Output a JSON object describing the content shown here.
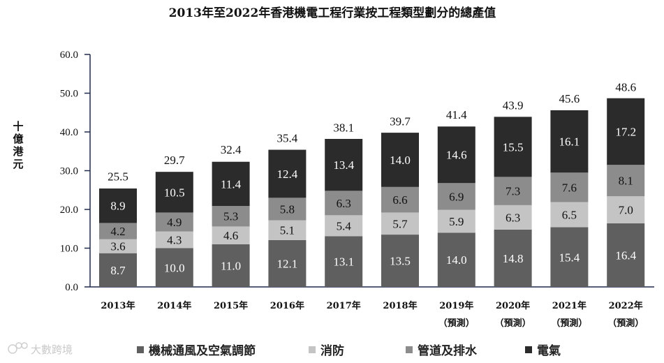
{
  "chart_data": {
    "type": "bar",
    "stacked": true,
    "title": "2013年至2022年香港機電工程行業按工程類型劃分的總產值",
    "ylabel": "十億港元",
    "xlabel": "",
    "ylim": [
      0,
      60
    ],
    "yticks": [
      "0.0",
      "10.0",
      "20.0",
      "30.0",
      "40.0",
      "50.0",
      "60.0"
    ],
    "categories": [
      {
        "year": "2013年",
        "note": ""
      },
      {
        "year": "2014年",
        "note": ""
      },
      {
        "year": "2015年",
        "note": ""
      },
      {
        "year": "2016年",
        "note": ""
      },
      {
        "year": "2017年",
        "note": ""
      },
      {
        "year": "2018年",
        "note": ""
      },
      {
        "year": "2019年",
        "note": "（預測）"
      },
      {
        "year": "2020年",
        "note": "（預測）"
      },
      {
        "year": "2021年",
        "note": "（預測）"
      },
      {
        "year": "2022年",
        "note": "（預測）"
      }
    ],
    "series": [
      {
        "name": "機械通風及空氣調節",
        "color": "#5f5f5f",
        "label_color": "#ffffff",
        "values": [
          "8.7",
          "10.0",
          "11.0",
          "12.1",
          "13.1",
          "13.5",
          "14.0",
          "14.8",
          "15.4",
          "16.4"
        ]
      },
      {
        "name": "消防",
        "color": "#c4c4c4",
        "label_color": "#111111",
        "values": [
          "3.6",
          "4.3",
          "4.6",
          "5.1",
          "5.4",
          "5.7",
          "5.9",
          "6.3",
          "6.5",
          "7.0"
        ]
      },
      {
        "name": "管道及排水",
        "color": "#8c8c8c",
        "label_color": "#111111",
        "values": [
          "4.2",
          "4.9",
          "5.3",
          "5.8",
          "6.3",
          "6.6",
          "6.9",
          "7.3",
          "7.6",
          "8.1"
        ]
      },
      {
        "name": "電氣",
        "color": "#2b2b2b",
        "label_color": "#ffffff",
        "values": [
          "8.9",
          "10.5",
          "11.4",
          "12.4",
          "13.4",
          "14.0",
          "14.6",
          "15.5",
          "16.1",
          "17.2"
        ]
      }
    ],
    "totals": [
      "25.5",
      "29.7",
      "32.4",
      "35.4",
      "38.1",
      "39.7",
      "41.4",
      "43.9",
      "45.6",
      "48.6"
    ],
    "legend_position": "bottom",
    "grid": false
  },
  "watermark": "大數跨境"
}
